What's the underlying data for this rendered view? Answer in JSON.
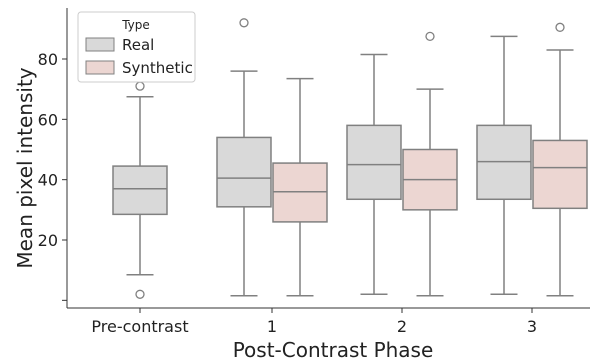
{
  "chart_data": {
    "type": "box",
    "xlabel": "Post-Contrast Phase",
    "ylabel": "Mean pixel intensity",
    "categories": [
      "Pre-contrast",
      "1",
      "2",
      "3"
    ],
    "yticks": [
      20,
      40,
      60,
      80
    ],
    "ylim": [
      -3,
      97
    ],
    "legend": {
      "title": "Type",
      "placement": "top-left",
      "entries": [
        {
          "label": "Real",
          "color": "#d9d9d9"
        },
        {
          "label": "Synthetic",
          "color": "#ecd6d2"
        }
      ]
    },
    "series": [
      {
        "name": "Real",
        "color": "#d9d9d9",
        "boxes": [
          {
            "category": "Pre-contrast",
            "whisker_low": 8.5,
            "q1": 28.5,
            "median": 37,
            "q3": 44.5,
            "whisker_high": 67.5,
            "outliers": [
              2,
              71
            ]
          },
          {
            "category": "1",
            "whisker_low": 1.5,
            "q1": 31,
            "median": 40.5,
            "q3": 54,
            "whisker_high": 76,
            "outliers": [
              92
            ]
          },
          {
            "category": "2",
            "whisker_low": 2,
            "q1": 33.5,
            "median": 45,
            "q3": 58,
            "whisker_high": 81.5,
            "outliers": []
          },
          {
            "category": "3",
            "whisker_low": 2,
            "q1": 33.5,
            "median": 46,
            "q3": 58,
            "whisker_high": 87.5,
            "outliers": []
          }
        ]
      },
      {
        "name": "Synthetic",
        "color": "#ecd6d2",
        "boxes": [
          {
            "category": "1",
            "whisker_low": 1.5,
            "q1": 26,
            "median": 36,
            "q3": 45.5,
            "whisker_high": 73.5,
            "outliers": []
          },
          {
            "category": "2",
            "whisker_low": 1.5,
            "q1": 30,
            "median": 40,
            "q3": 50,
            "whisker_high": 70,
            "outliers": [
              87.5
            ]
          },
          {
            "category": "3",
            "whisker_low": 1.5,
            "q1": 30.5,
            "median": 44,
            "q3": 53,
            "whisker_high": 83,
            "outliers": [
              90.5
            ]
          }
        ]
      }
    ],
    "grid": false,
    "line_color": "#808080"
  }
}
